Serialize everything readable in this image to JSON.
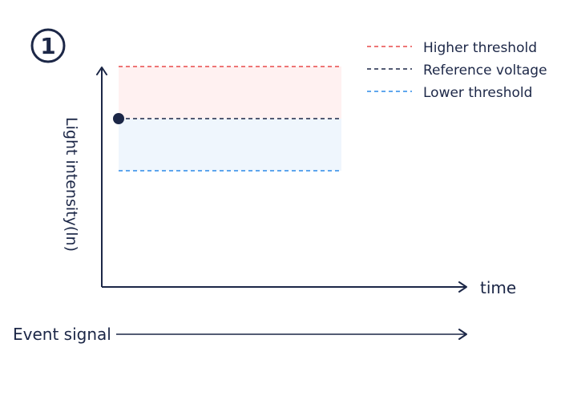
{
  "step_marker": "①",
  "legend": [
    {
      "label": "Higher threshold",
      "color": "#e84a4a"
    },
    {
      "label": "Reference voltage",
      "color": "#1c2747"
    },
    {
      "label": "Lower threshold",
      "color": "#2b8ae8"
    }
  ],
  "axes": {
    "y_label": "Light intensity(ln)",
    "x_label": "time"
  },
  "event_signal_label": "Event signal",
  "colors": {
    "axis": "#1c2747",
    "upper_band_fill": "#fff1f1",
    "lower_band_fill": "#eff6fd",
    "point": "#1c2747"
  }
}
